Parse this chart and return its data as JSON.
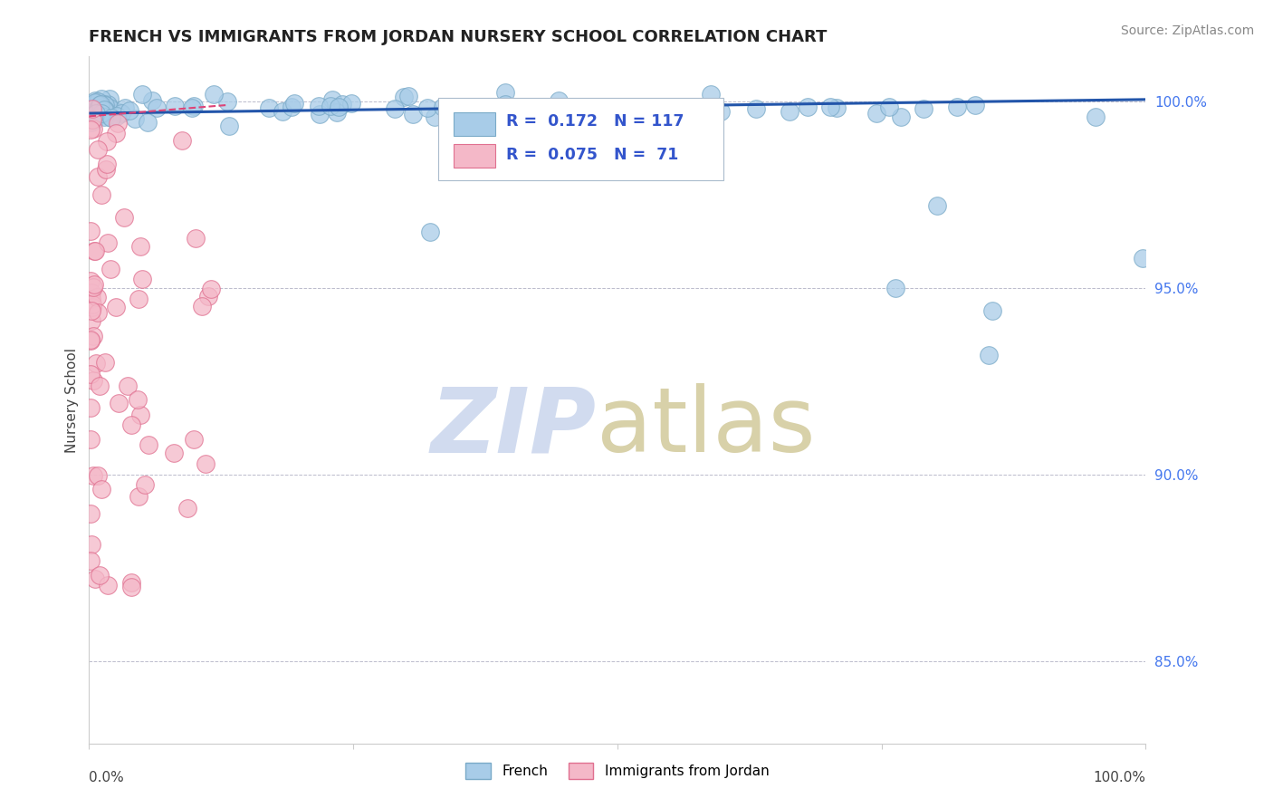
{
  "title": "FRENCH VS IMMIGRANTS FROM JORDAN NURSERY SCHOOL CORRELATION CHART",
  "source": "Source: ZipAtlas.com",
  "ylabel": "Nursery School",
  "ytick_labels": [
    "85.0%",
    "90.0%",
    "95.0%",
    "100.0%"
  ],
  "ytick_values": [
    0.85,
    0.9,
    0.95,
    1.0
  ],
  "xlim": [
    0.0,
    1.0
  ],
  "ylim": [
    0.828,
    1.012
  ],
  "legend_r_french": "R =  0.172",
  "legend_n_french": "N = 117",
  "legend_r_jordan": "R =  0.075",
  "legend_n_jordan": "N =  71",
  "french_color": "#a8cce8",
  "jordan_color": "#f4b8c8",
  "french_edge": "#7aaac8",
  "jordan_edge": "#e07090",
  "french_trend_color": "#2255aa",
  "jordan_trend_color": "#dd4477",
  "watermark_zip_color": "#ccd8ee",
  "watermark_atlas_color": "#d4cca0",
  "legend_text_color": "#3355cc"
}
